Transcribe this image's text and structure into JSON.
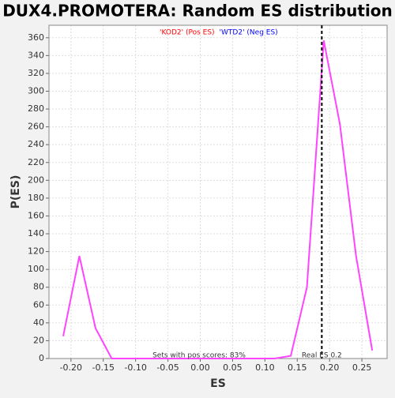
{
  "chart_data": {
    "type": "line",
    "title": "DUX4.PROMOTERA: Random ES distribution",
    "xlabel": "ES",
    "ylabel": "P(ES)",
    "legend": [
      {
        "name": "'KOD2' (Pos ES)",
        "color": "#ff0000"
      },
      {
        "name": "'WTD2' (Neg ES)",
        "color": "#0000ff"
      }
    ],
    "x": [
      -0.212,
      -0.187,
      -0.162,
      -0.137,
      -0.111,
      -0.086,
      -0.061,
      -0.036,
      -0.011,
      0.014,
      0.04,
      0.065,
      0.09,
      0.115,
      0.14,
      0.165,
      0.191,
      0.216,
      0.241,
      0.266
    ],
    "series": [
      {
        "name": "P(ES)",
        "color": "#ff44ff",
        "values": [
          25,
          115,
          34,
          0,
          0,
          0,
          0,
          0,
          0,
          0,
          0,
          0,
          0,
          0,
          3,
          80,
          357,
          263,
          115,
          9
        ]
      }
    ],
    "real_es": 0.188,
    "real_es_label": "Real ES 0.2",
    "pos_scores_label": "Sets with pos scores: 83%",
    "xlim": [
      -0.234,
      0.289
    ],
    "ylim": [
      0,
      374
    ],
    "xticks": [
      {
        "value": -0.2,
        "label": "-0.20"
      },
      {
        "value": -0.15,
        "label": "-0.15"
      },
      {
        "value": -0.1,
        "label": "-0.10"
      },
      {
        "value": -0.05,
        "label": "-0.05"
      },
      {
        "value": 0,
        "label": "0.00"
      },
      {
        "value": 0.05,
        "label": "0.05"
      },
      {
        "value": 0.1,
        "label": "0.10"
      },
      {
        "value": 0.15,
        "label": "0.15"
      },
      {
        "value": 0.2,
        "label": "0.20"
      },
      {
        "value": 0.25,
        "label": "0.25"
      }
    ],
    "yticks": [
      0,
      20,
      40,
      60,
      80,
      100,
      120,
      140,
      160,
      180,
      200,
      220,
      240,
      260,
      280,
      300,
      320,
      340,
      360
    ],
    "grid": true
  }
}
